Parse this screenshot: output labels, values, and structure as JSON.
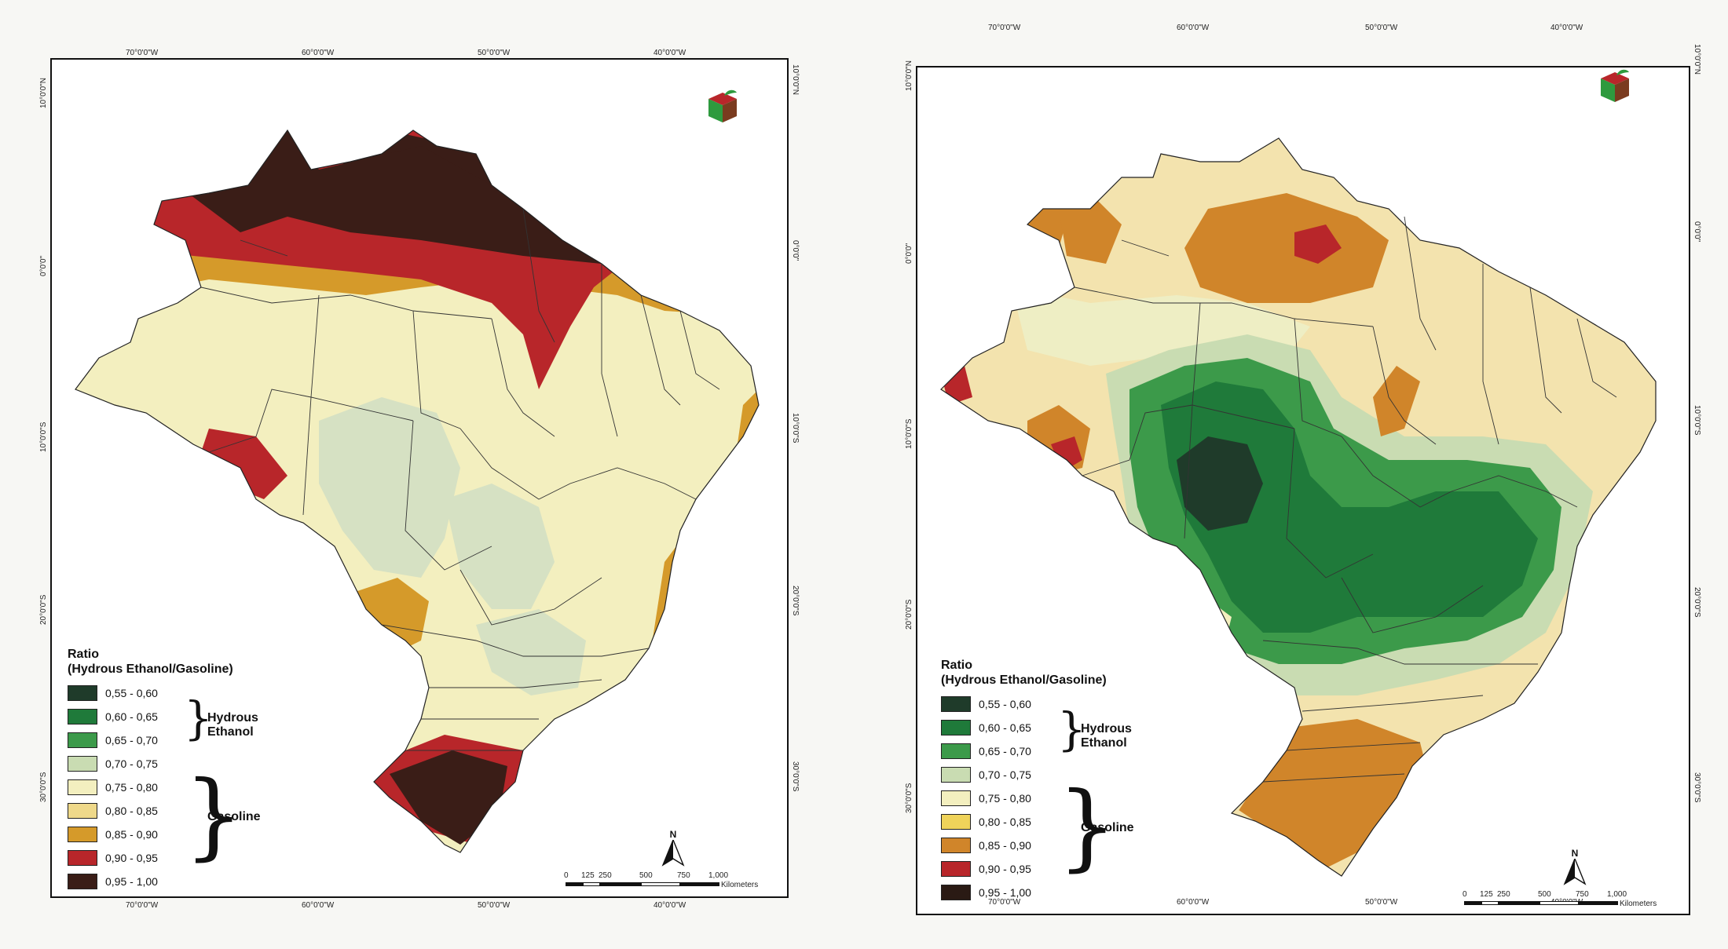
{
  "maps": [
    {
      "id": "left",
      "legend_title_line1": "Ratio",
      "legend_title_line2": "(Hydrous Ethanol/Gasoline)",
      "ethanol_label": "Hydrous Ethanol",
      "gasoline_label": "Gasoline"
    },
    {
      "id": "right",
      "legend_title_line1": "Ratio",
      "legend_title_line2": "(Hydrous Ethanol/Gasoline)",
      "ethanol_label": "Hydrous Ethanol",
      "gasoline_label": "Gasoline"
    }
  ],
  "legend_classes": [
    {
      "label": "0,55 - 0,60",
      "color": "#1f3b2a"
    },
    {
      "label": "0,60 - 0,65",
      "color": "#1f7a3a"
    },
    {
      "label": "0,65 - 0,70",
      "color": "#3c9a4a"
    },
    {
      "label": "0,70 - 0,75",
      "color": "#c9dcb2"
    },
    {
      "label": "0,75 - 0,80",
      "color": "#f3efbf"
    },
    {
      "label": "0,80 - 0,85",
      "color": "#efd98a"
    },
    {
      "label": "0,85 - 0,90",
      "color": "#d59a2a"
    },
    {
      "label": "0,90 - 0,95",
      "color": "#b8262a"
    },
    {
      "label": "0,95 - 1,00",
      "color": "#3a1d17"
    }
  ],
  "longitude_ticks": [
    "70°0'0\"W",
    "60°0'0\"W",
    "50°0'0\"W",
    "40°0'0\"W"
  ],
  "latitude_ticks": [
    "10°0'0\"N",
    "0°0'0\"",
    "10°0'0\"S",
    "20°0'0\"S",
    "30°0'0\"S"
  ],
  "scale": {
    "labels": [
      "0",
      "125",
      "250",
      "500",
      "750",
      "1,000"
    ],
    "unit": "Kilometers"
  },
  "north_label": "N",
  "icons": [
    "north-arrow-icon",
    "cube-logo-icon"
  ]
}
